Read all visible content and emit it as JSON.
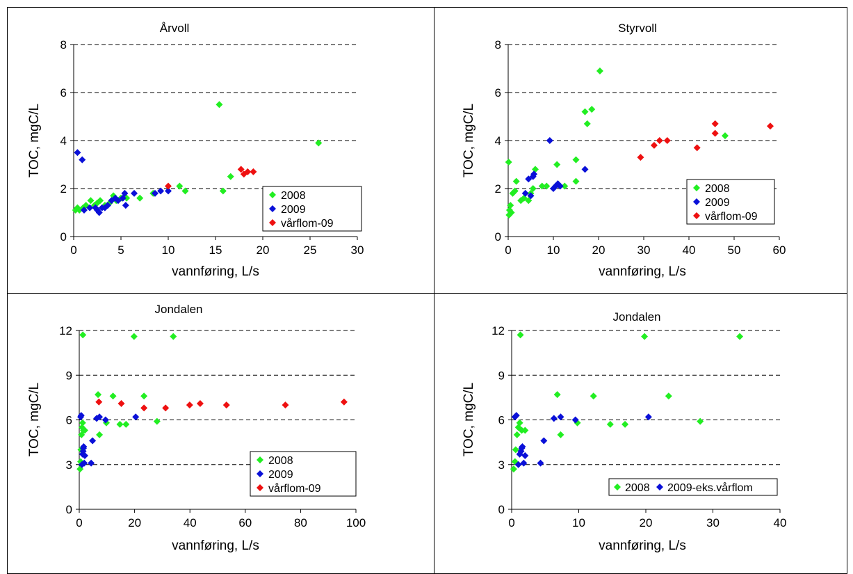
{
  "colors": {
    "s2008": "#22ee22",
    "s2009": "#0a10d8",
    "vf09": "#ee1010",
    "grid": "#000000"
  },
  "chart_data": [
    {
      "type": "scatter",
      "title": "Årvoll",
      "xlabel": "vannføring, L/s",
      "ylabel": "TOC, mgC/L",
      "xlim": [
        0,
        30
      ],
      "ylim": [
        0,
        8
      ],
      "xticks": [
        0,
        5,
        10,
        15,
        20,
        25,
        30
      ],
      "yticks": [
        0,
        2,
        4,
        6,
        8
      ],
      "gridlines": [
        2,
        4,
        6,
        8
      ],
      "legend_position": "bottom-right",
      "series": [
        {
          "name": "2008",
          "color_key": "s2008",
          "points": [
            [
              0.2,
              1.1
            ],
            [
              0.4,
              1.2
            ],
            [
              0.6,
              1.1
            ],
            [
              1.0,
              1.2
            ],
            [
              1.3,
              1.3
            ],
            [
              1.8,
              1.5
            ],
            [
              2.2,
              1.3
            ],
            [
              2.5,
              1.4
            ],
            [
              2.8,
              1.5
            ],
            [
              3.3,
              1.3
            ],
            [
              3.8,
              1.4
            ],
            [
              4.2,
              1.7
            ],
            [
              4.5,
              1.5
            ],
            [
              5.0,
              1.6
            ],
            [
              5.6,
              1.6
            ],
            [
              7.0,
              1.6
            ],
            [
              8.4,
              1.8
            ],
            [
              11.2,
              2.1
            ],
            [
              11.8,
              1.9
            ],
            [
              15.4,
              5.5
            ],
            [
              15.8,
              1.9
            ],
            [
              16.6,
              2.5
            ],
            [
              25.9,
              3.9
            ]
          ]
        },
        {
          "name": "2009",
          "color_key": "s2009",
          "points": [
            [
              0.4,
              3.5
            ],
            [
              0.9,
              3.2
            ],
            [
              1.1,
              1.1
            ],
            [
              1.7,
              1.2
            ],
            [
              2.3,
              1.2
            ],
            [
              2.5,
              1.1
            ],
            [
              2.7,
              1.0
            ],
            [
              3.0,
              1.2
            ],
            [
              3.3,
              1.2
            ],
            [
              3.6,
              1.3
            ],
            [
              4.0,
              1.5
            ],
            [
              4.4,
              1.6
            ],
            [
              4.7,
              1.5
            ],
            [
              5.2,
              1.6
            ],
            [
              5.4,
              1.8
            ],
            [
              5.5,
              1.3
            ],
            [
              6.4,
              1.8
            ],
            [
              8.6,
              1.8
            ],
            [
              9.2,
              1.9
            ],
            [
              10.0,
              1.9
            ]
          ]
        },
        {
          "name": "vårflom-09",
          "color_key": "vf09",
          "points": [
            [
              10.0,
              2.1
            ],
            [
              17.7,
              2.8
            ],
            [
              18.0,
              2.6
            ],
            [
              18.4,
              2.7
            ],
            [
              19.0,
              2.7
            ]
          ]
        }
      ]
    },
    {
      "type": "scatter",
      "title": "Styrvoll",
      "xlabel": "vannføring, L/s",
      "ylabel": "TOC, mgC/L",
      "xlim": [
        0,
        60
      ],
      "ylim": [
        0,
        8
      ],
      "xticks": [
        0,
        10,
        20,
        30,
        40,
        50,
        60
      ],
      "yticks": [
        0,
        2,
        4,
        6,
        8
      ],
      "gridlines": [
        2,
        4,
        6,
        8
      ],
      "legend_position": "bottom-right",
      "series": [
        {
          "name": "2008",
          "color_key": "s2008",
          "points": [
            [
              0.1,
              3.1
            ],
            [
              0.2,
              0.9
            ],
            [
              0.3,
              1.1
            ],
            [
              0.5,
              1.3
            ],
            [
              0.7,
              1.0
            ],
            [
              1.0,
              1.8
            ],
            [
              1.5,
              1.9
            ],
            [
              1.8,
              2.3
            ],
            [
              2.8,
              1.5
            ],
            [
              3.5,
              1.6
            ],
            [
              4.5,
              1.5
            ],
            [
              5.0,
              1.8
            ],
            [
              5.5,
              2.0
            ],
            [
              6.0,
              2.8
            ],
            [
              7.5,
              2.1
            ],
            [
              8.5,
              2.1
            ],
            [
              10.5,
              2.1
            ],
            [
              10.8,
              3.0
            ],
            [
              12.5,
              2.1
            ],
            [
              15.0,
              3.2
            ],
            [
              15.0,
              2.3
            ],
            [
              17.0,
              5.2
            ],
            [
              17.5,
              4.7
            ],
            [
              18.5,
              5.3
            ],
            [
              20.3,
              6.9
            ],
            [
              48.0,
              4.2
            ]
          ]
        },
        {
          "name": "2009",
          "color_key": "s2009",
          "points": [
            [
              3.8,
              1.8
            ],
            [
              4.5,
              2.4
            ],
            [
              5.0,
              1.7
            ],
            [
              5.5,
              2.5
            ],
            [
              5.7,
              2.6
            ],
            [
              9.2,
              4.0
            ],
            [
              10.0,
              2.0
            ],
            [
              10.5,
              2.1
            ],
            [
              11.0,
              2.2
            ],
            [
              11.5,
              2.1
            ],
            [
              17.0,
              2.8
            ]
          ]
        },
        {
          "name": "vårflom-09",
          "color_key": "vf09",
          "points": [
            [
              29.3,
              3.3
            ],
            [
              32.3,
              3.8
            ],
            [
              33.5,
              4.0
            ],
            [
              35.2,
              4.0
            ],
            [
              41.8,
              3.7
            ],
            [
              45.8,
              4.7
            ],
            [
              45.8,
              4.3
            ],
            [
              58.0,
              4.6
            ]
          ]
        }
      ]
    },
    {
      "type": "scatter",
      "title": "Jondalen",
      "xlabel": "vannføring, L/s",
      "ylabel": "TOC, mgC/L",
      "xlim": [
        0,
        100
      ],
      "ylim": [
        0,
        12
      ],
      "xticks": [
        0,
        20,
        40,
        60,
        80,
        100
      ],
      "yticks": [
        0,
        3,
        6,
        9,
        12
      ],
      "gridlines": [
        3,
        6,
        9,
        12
      ],
      "legend_position": "bottom-right",
      "series": [
        {
          "name": "2008",
          "color_key": "s2008",
          "points": [
            [
              0.3,
              2.7
            ],
            [
              0.5,
              3.2
            ],
            [
              0.6,
              4.0
            ],
            [
              0.8,
              5.0
            ],
            [
              1.0,
              5.5
            ],
            [
              1.2,
              5.8
            ],
            [
              1.3,
              11.7
            ],
            [
              1.5,
              5.3
            ],
            [
              2.0,
              5.3
            ],
            [
              6.8,
              7.7
            ],
            [
              7.3,
              5.0
            ],
            [
              9.8,
              5.8
            ],
            [
              12.2,
              7.6
            ],
            [
              14.7,
              5.7
            ],
            [
              16.9,
              5.7
            ],
            [
              19.8,
              11.6
            ],
            [
              23.4,
              7.6
            ],
            [
              28.1,
              5.9
            ],
            [
              34.0,
              11.6
            ]
          ]
        },
        {
          "name": "2009",
          "color_key": "s2009",
          "points": [
            [
              0.5,
              6.2
            ],
            [
              0.7,
              6.3
            ],
            [
              1.0,
              3.0
            ],
            [
              1.2,
              3.7
            ],
            [
              1.4,
              3.9
            ],
            [
              1.5,
              4.1
            ],
            [
              1.6,
              4.2
            ],
            [
              1.8,
              3.1
            ],
            [
              2.0,
              3.6
            ],
            [
              4.3,
              3.1
            ],
            [
              4.8,
              4.6
            ],
            [
              6.3,
              6.1
            ],
            [
              7.3,
              6.2
            ],
            [
              9.5,
              6.0
            ],
            [
              20.4,
              6.2
            ]
          ]
        },
        {
          "name": "vårflom-09",
          "color_key": "vf09",
          "points": [
            [
              7.1,
              7.2
            ],
            [
              15.2,
              7.1
            ],
            [
              23.4,
              6.8
            ],
            [
              31.2,
              6.8
            ],
            [
              39.9,
              7.0
            ],
            [
              43.7,
              7.1
            ],
            [
              53.2,
              7.0
            ],
            [
              74.5,
              7.0
            ],
            [
              95.7,
              7.2
            ]
          ]
        }
      ]
    },
    {
      "type": "scatter",
      "title": "Jondalen",
      "xlabel": "vannføring, L/s",
      "ylabel": "TOC, mgC/L",
      "xlim": [
        0,
        40
      ],
      "ylim": [
        0,
        12
      ],
      "xticks": [
        0,
        10,
        20,
        30,
        40
      ],
      "yticks": [
        0,
        3,
        6,
        9,
        12
      ],
      "gridlines": [
        3,
        6,
        9,
        12
      ],
      "legend_position": "bottom-right",
      "legend_layout": "horizontal",
      "series": [
        {
          "name": "2008",
          "color_key": "s2008",
          "points": [
            [
              0.3,
              2.7
            ],
            [
              0.5,
              3.2
            ],
            [
              0.6,
              4.0
            ],
            [
              0.8,
              5.0
            ],
            [
              1.0,
              5.5
            ],
            [
              1.2,
              5.8
            ],
            [
              1.3,
              11.7
            ],
            [
              1.5,
              5.3
            ],
            [
              2.0,
              5.3
            ],
            [
              6.8,
              7.7
            ],
            [
              7.3,
              5.0
            ],
            [
              9.8,
              5.8
            ],
            [
              12.2,
              7.6
            ],
            [
              14.7,
              5.7
            ],
            [
              16.9,
              5.7
            ],
            [
              19.8,
              11.6
            ],
            [
              23.4,
              7.6
            ],
            [
              28.1,
              5.9
            ],
            [
              34.0,
              11.6
            ]
          ]
        },
        {
          "name": "2009-eks.vårflom",
          "color_key": "s2009",
          "points": [
            [
              0.5,
              6.2
            ],
            [
              0.7,
              6.3
            ],
            [
              1.0,
              3.0
            ],
            [
              1.2,
              3.7
            ],
            [
              1.4,
              3.9
            ],
            [
              1.5,
              4.1
            ],
            [
              1.6,
              4.2
            ],
            [
              1.8,
              3.1
            ],
            [
              2.0,
              3.6
            ],
            [
              4.3,
              3.1
            ],
            [
              4.8,
              4.6
            ],
            [
              6.3,
              6.1
            ],
            [
              7.3,
              6.2
            ],
            [
              9.5,
              6.0
            ],
            [
              20.4,
              6.2
            ]
          ]
        }
      ]
    }
  ]
}
